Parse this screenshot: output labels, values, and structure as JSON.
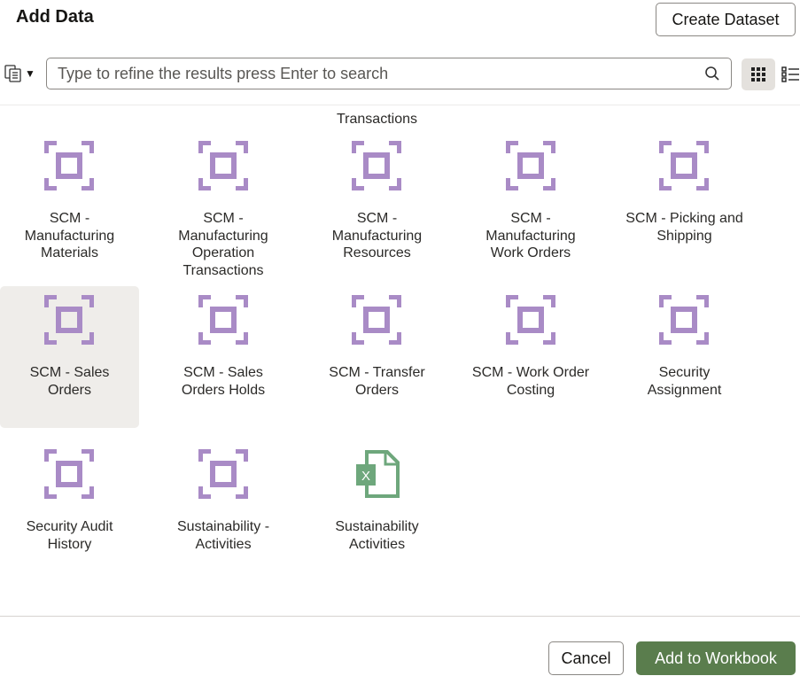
{
  "header": {
    "title": "Add Data",
    "create_label": "Create Dataset"
  },
  "search": {
    "placeholder": "Type to refine the results press Enter to search"
  },
  "colors": {
    "subject_area_icon": "#a98bc6",
    "excel_icon": "#6ea77c",
    "primary_button": "#5a7d4d",
    "selected_bg": "#efedea"
  },
  "items": [
    {
      "label": "Transactions",
      "icon": "none",
      "partial": true
    },
    {
      "label": "SCM - Manufacturing Materials",
      "icon": "subject-area"
    },
    {
      "label": "SCM - Manufacturing Operation Transactions",
      "icon": "subject-area"
    },
    {
      "label": "SCM - Manufacturing Resources",
      "icon": "subject-area"
    },
    {
      "label": "SCM - Manufacturing Work Orders",
      "icon": "subject-area"
    },
    {
      "label": "SCM - Picking and Shipping",
      "icon": "subject-area"
    },
    {
      "label": "SCM - Sales Orders",
      "icon": "subject-area",
      "selected": true
    },
    {
      "label": "SCM - Sales Orders Holds",
      "icon": "subject-area"
    },
    {
      "label": "SCM - Transfer Orders",
      "icon": "subject-area"
    },
    {
      "label": "SCM - Work Order Costing",
      "icon": "subject-area"
    },
    {
      "label": "Security Assignment",
      "icon": "subject-area"
    },
    {
      "label": "Security Audit History",
      "icon": "subject-area"
    },
    {
      "label": "Sustainability - Activities",
      "icon": "subject-area"
    },
    {
      "label": "Sustainability Activities",
      "icon": "excel-file"
    }
  ],
  "footer": {
    "cancel_label": "Cancel",
    "add_label": "Add to Workbook"
  }
}
